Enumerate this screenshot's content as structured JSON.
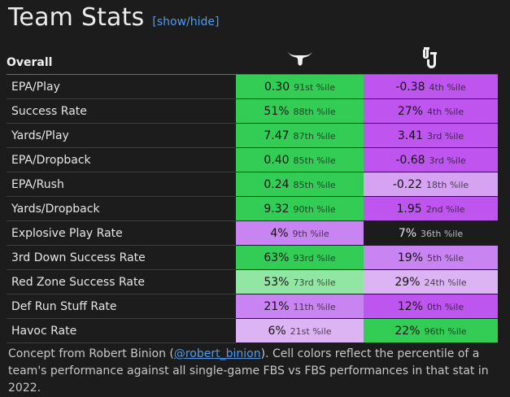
{
  "title": "Team Stats",
  "toggle_label": "[show/hide]",
  "table": {
    "header": "Overall",
    "team_a_logo": "longhorn-icon",
    "team_b_logo": "ou-icon",
    "rows": [
      {
        "stat": "EPA/Play",
        "a_value": "0.30",
        "a_pct": "91st %ile",
        "a_color": "#33cc55",
        "b_value": "-0.38",
        "b_pct": "4th %ile",
        "b_color": "#bd55ee"
      },
      {
        "stat": "Success Rate",
        "a_value": "51%",
        "a_pct": "88th %ile",
        "a_color": "#33cc55",
        "b_value": "27%",
        "b_pct": "4th %ile",
        "b_color": "#bd55ee"
      },
      {
        "stat": "Yards/Play",
        "a_value": "7.47",
        "a_pct": "87th %ile",
        "a_color": "#33cc55",
        "b_value": "3.41",
        "b_pct": "3rd %ile",
        "b_color": "#bd55ee"
      },
      {
        "stat": "EPA/Dropback",
        "a_value": "0.40",
        "a_pct": "85th %ile",
        "a_color": "#33cc55",
        "b_value": "-0.68",
        "b_pct": "3rd %ile",
        "b_color": "#bd55ee"
      },
      {
        "stat": "EPA/Rush",
        "a_value": "0.24",
        "a_pct": "85th %ile",
        "a_color": "#33cc55",
        "b_value": "-0.22",
        "b_pct": "18th %ile",
        "b_color": "#d6a3f2"
      },
      {
        "stat": "Yards/Dropback",
        "a_value": "9.32",
        "a_pct": "90th %ile",
        "a_color": "#33cc55",
        "b_value": "1.95",
        "b_pct": "2nd %ile",
        "b_color": "#bd55ee"
      },
      {
        "stat": "Explosive Play Rate",
        "a_value": "4%",
        "a_pct": "9th %ile",
        "a_color": "#c884f0",
        "b_value": "7%",
        "b_pct": "36th %ile",
        "b_color": "#1c1c1c"
      },
      {
        "stat": "3rd Down Success Rate",
        "a_value": "63%",
        "a_pct": "93rd %ile",
        "a_color": "#33cc55",
        "b_value": "19%",
        "b_pct": "5th %ile",
        "b_color": "#c884f0"
      },
      {
        "stat": "Red Zone Success Rate",
        "a_value": "53%",
        "a_pct": "73rd %ile",
        "a_color": "#92e6a3",
        "b_value": "29%",
        "b_pct": "24th %ile",
        "b_color": "#dcb3f3"
      },
      {
        "stat": "Def Run Stuff Rate",
        "a_value": "21%",
        "a_pct": "11th %ile",
        "a_color": "#c884f0",
        "b_value": "12%",
        "b_pct": "0th %ile",
        "b_color": "#bd55ee"
      },
      {
        "stat": "Havoc Rate",
        "a_value": "6%",
        "a_pct": "21st %ile",
        "a_color": "#dcb3f3",
        "b_value": "22%",
        "b_pct": "96th %ile",
        "b_color": "#33cc55"
      }
    ]
  },
  "caption": {
    "prefix": "Concept from Robert Binion (",
    "link": "@robert_binion",
    "suffix": "). Cell colors reflect the percentile of a team's performance against all single-game FBS vs FBS performances in that stat in 2022."
  }
}
